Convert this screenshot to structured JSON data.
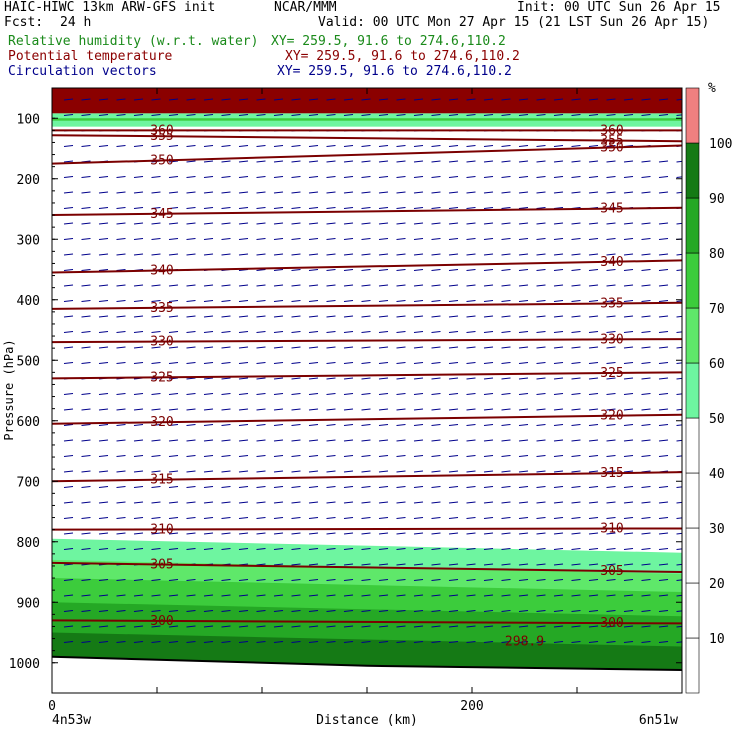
{
  "header": {
    "model": "HAIC-HIWC 13km ARW-GFS init",
    "org": "NCAR/MMM",
    "init": "Init: 00 UTC Sun 26 Apr 15",
    "fcst_label": "Fcst:",
    "fcst_value": "24 h",
    "valid": "Valid: 00 UTC Mon 27 Apr 15 (21 LST Sun 26 Apr 15)",
    "field1": "Relative humidity (w.r.t. water)",
    "field1_xy": "XY= 259.5, 91.6 to 274.6,110.2",
    "field2": "Potential temperature",
    "field2_xy": "XY= 259.5, 91.6 to 274.6,110.2",
    "field3": "Circulation vectors",
    "field3_xy": "XY= 259.5, 91.6 to 274.6,110.2"
  },
  "chart_data": {
    "type": "cross-section",
    "xlabel": "Distance (km)",
    "ylabel": "Pressure (hPa)",
    "xlim": [
      0,
      300
    ],
    "ylim": [
      1050,
      50
    ],
    "x_ticks": [
      0,
      200
    ],
    "y_ticks": [
      100,
      200,
      300,
      400,
      500,
      600,
      700,
      800,
      900,
      1000
    ],
    "left_endpoint_label": "4n53w",
    "right_endpoint_label": "6n51w",
    "colorbar": {
      "unit": "%",
      "levels": [
        10,
        20,
        30,
        40,
        50,
        60,
        70,
        80,
        90,
        100
      ],
      "colors": [
        "#ffffff",
        "#ffffff",
        "#ffffff",
        "#ffffff",
        "#6ef5a0",
        "#5fe86a",
        "#3ccc3c",
        "#25a825",
        "#157a15",
        "#f08080"
      ]
    },
    "theta_isolines": [
      {
        "value": 360,
        "pressure": [
          120,
          120
        ],
        "label": "360"
      },
      {
        "value": 355,
        "pressure": [
          128,
          138
        ],
        "label": "355"
      },
      {
        "value": 350,
        "pressure": [
          175,
          145
        ],
        "label": "350"
      },
      {
        "value": 345,
        "pressure": [
          260,
          248
        ],
        "label": "345"
      },
      {
        "value": 340,
        "pressure": [
          355,
          335
        ],
        "label": "340"
      },
      {
        "value": 335,
        "pressure": [
          415,
          405
        ],
        "label": "335"
      },
      {
        "value": 330,
        "pressure": [
          470,
          465
        ],
        "label": "330"
      },
      {
        "value": 325,
        "pressure": [
          530,
          520
        ],
        "label": "325"
      },
      {
        "value": 320,
        "pressure": [
          605,
          590
        ],
        "label": "320"
      },
      {
        "value": 315,
        "pressure": [
          700,
          685
        ],
        "label": "315"
      },
      {
        "value": 310,
        "pressure": [
          780,
          778
        ],
        "label": "310"
      },
      {
        "value": 305,
        "pressure": [
          835,
          850
        ],
        "label": "305"
      },
      {
        "value": 300,
        "pressure": [
          930,
          935
        ],
        "label": "300"
      }
    ],
    "theta_extra_label": "298.9",
    "rh_bands": [
      {
        "range": "100",
        "top_hPa": 50,
        "bottom_hPa": 92
      },
      {
        "range": "50-60",
        "top_hPa": 795,
        "bottom_hPa": 830
      },
      {
        "range": "60-70",
        "top_hPa": 830,
        "bottom_hPa": 860
      },
      {
        "range": "70-80",
        "top_hPa": 860,
        "bottom_hPa": 900
      },
      {
        "range": "80-90",
        "top_hPa": 900,
        "bottom_hPa": 950
      },
      {
        "range": "90-100",
        "top_hPa": 950,
        "bottom_hPa": 1000
      }
    ]
  }
}
